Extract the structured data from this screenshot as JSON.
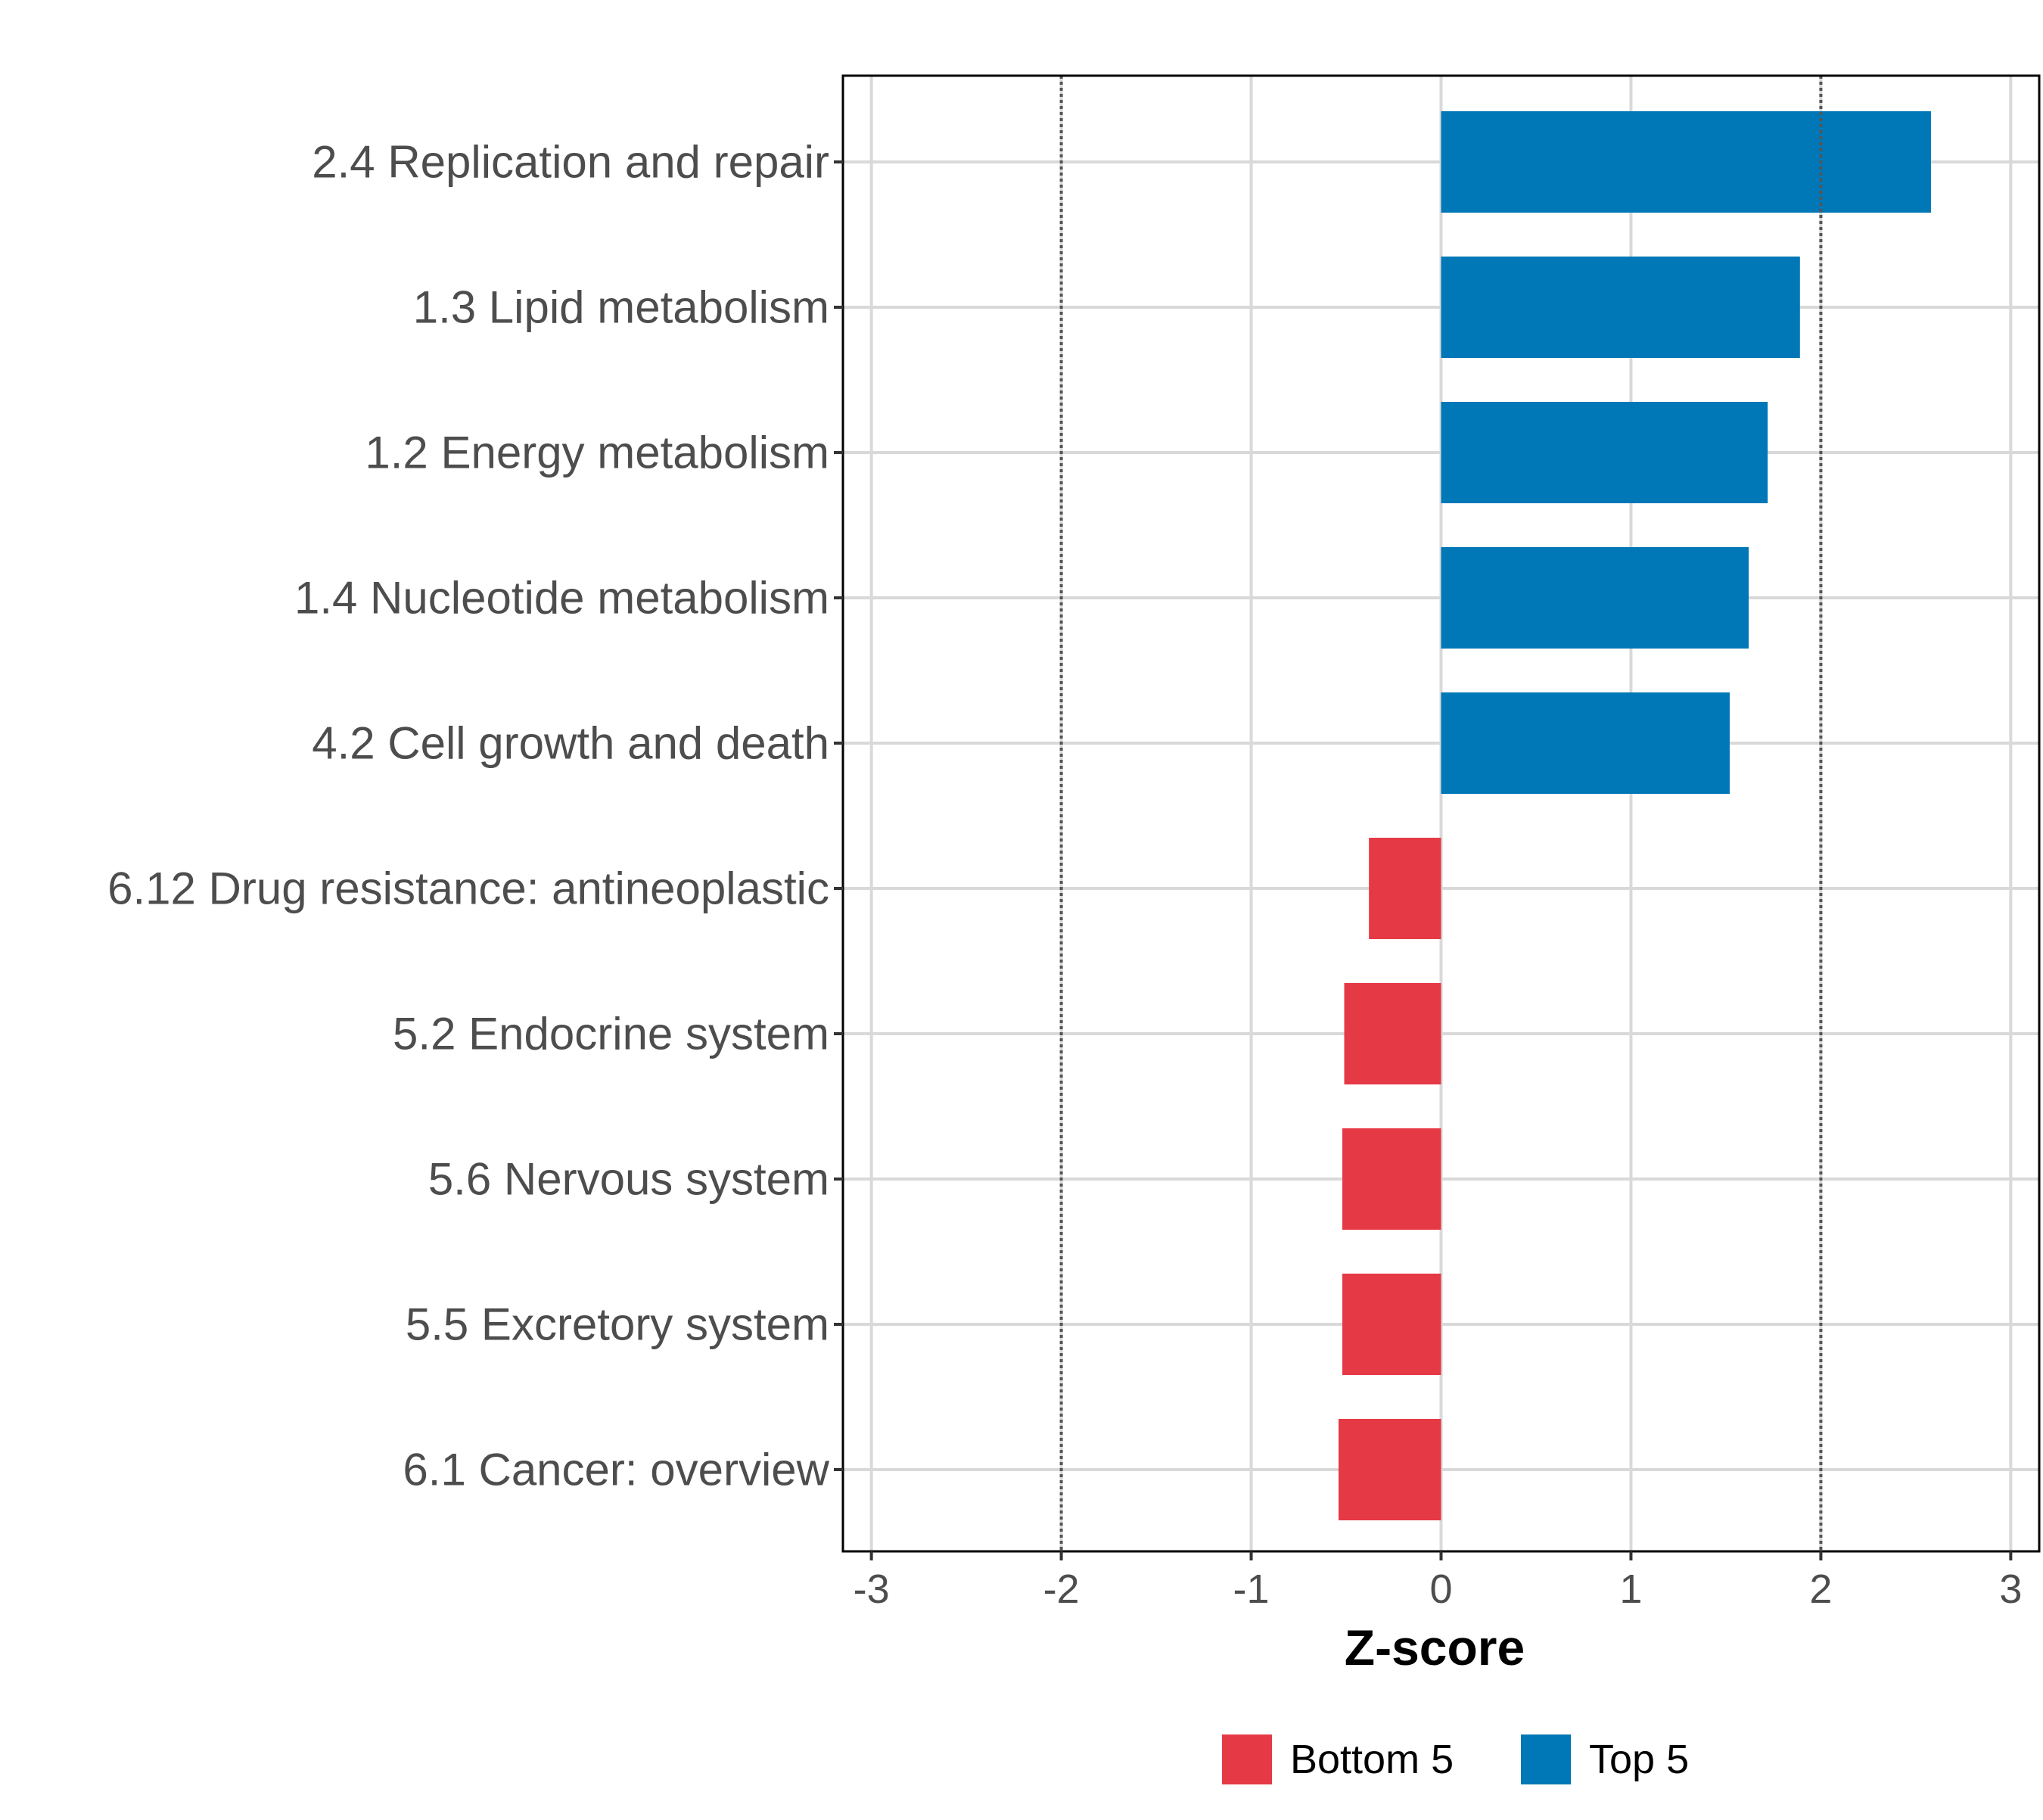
{
  "chart_data": {
    "type": "bar",
    "orientation": "horizontal",
    "title": "",
    "xlabel": "Z-score",
    "ylabel": "",
    "xlim": [
      -3.15,
      3.15
    ],
    "xticks": [
      -3,
      -2,
      -1,
      0,
      1,
      2,
      3
    ],
    "xtick_labels": [
      "-3",
      "-2",
      "-1",
      "0",
      "1",
      "2",
      "3"
    ],
    "reference_lines": [
      -2,
      2
    ],
    "grid": true,
    "categories": [
      "2.4 Replication and repair",
      "1.3 Lipid metabolism",
      "1.2 Energy metabolism",
      "1.4 Nucleotide metabolism",
      "4.2 Cell growth and death",
      "6.12 Drug resistance: antineoplastic",
      "5.2 Endocrine system",
      "5.6 Nervous system",
      "5.5 Excretory system",
      "6.1 Cancer: overview"
    ],
    "values": [
      2.58,
      1.89,
      1.72,
      1.62,
      1.52,
      -0.38,
      -0.51,
      -0.52,
      -0.52,
      -0.54
    ],
    "groups": [
      "Top 5",
      "Top 5",
      "Top 5",
      "Top 5",
      "Top 5",
      "Bottom 5",
      "Bottom 5",
      "Bottom 5",
      "Bottom 5",
      "Bottom 5"
    ],
    "legend": {
      "position": "bottom",
      "entries": [
        {
          "name": "Bottom 5",
          "color": "#E63946"
        },
        {
          "name": "Top 5",
          "color": "#0077B6"
        }
      ]
    }
  }
}
